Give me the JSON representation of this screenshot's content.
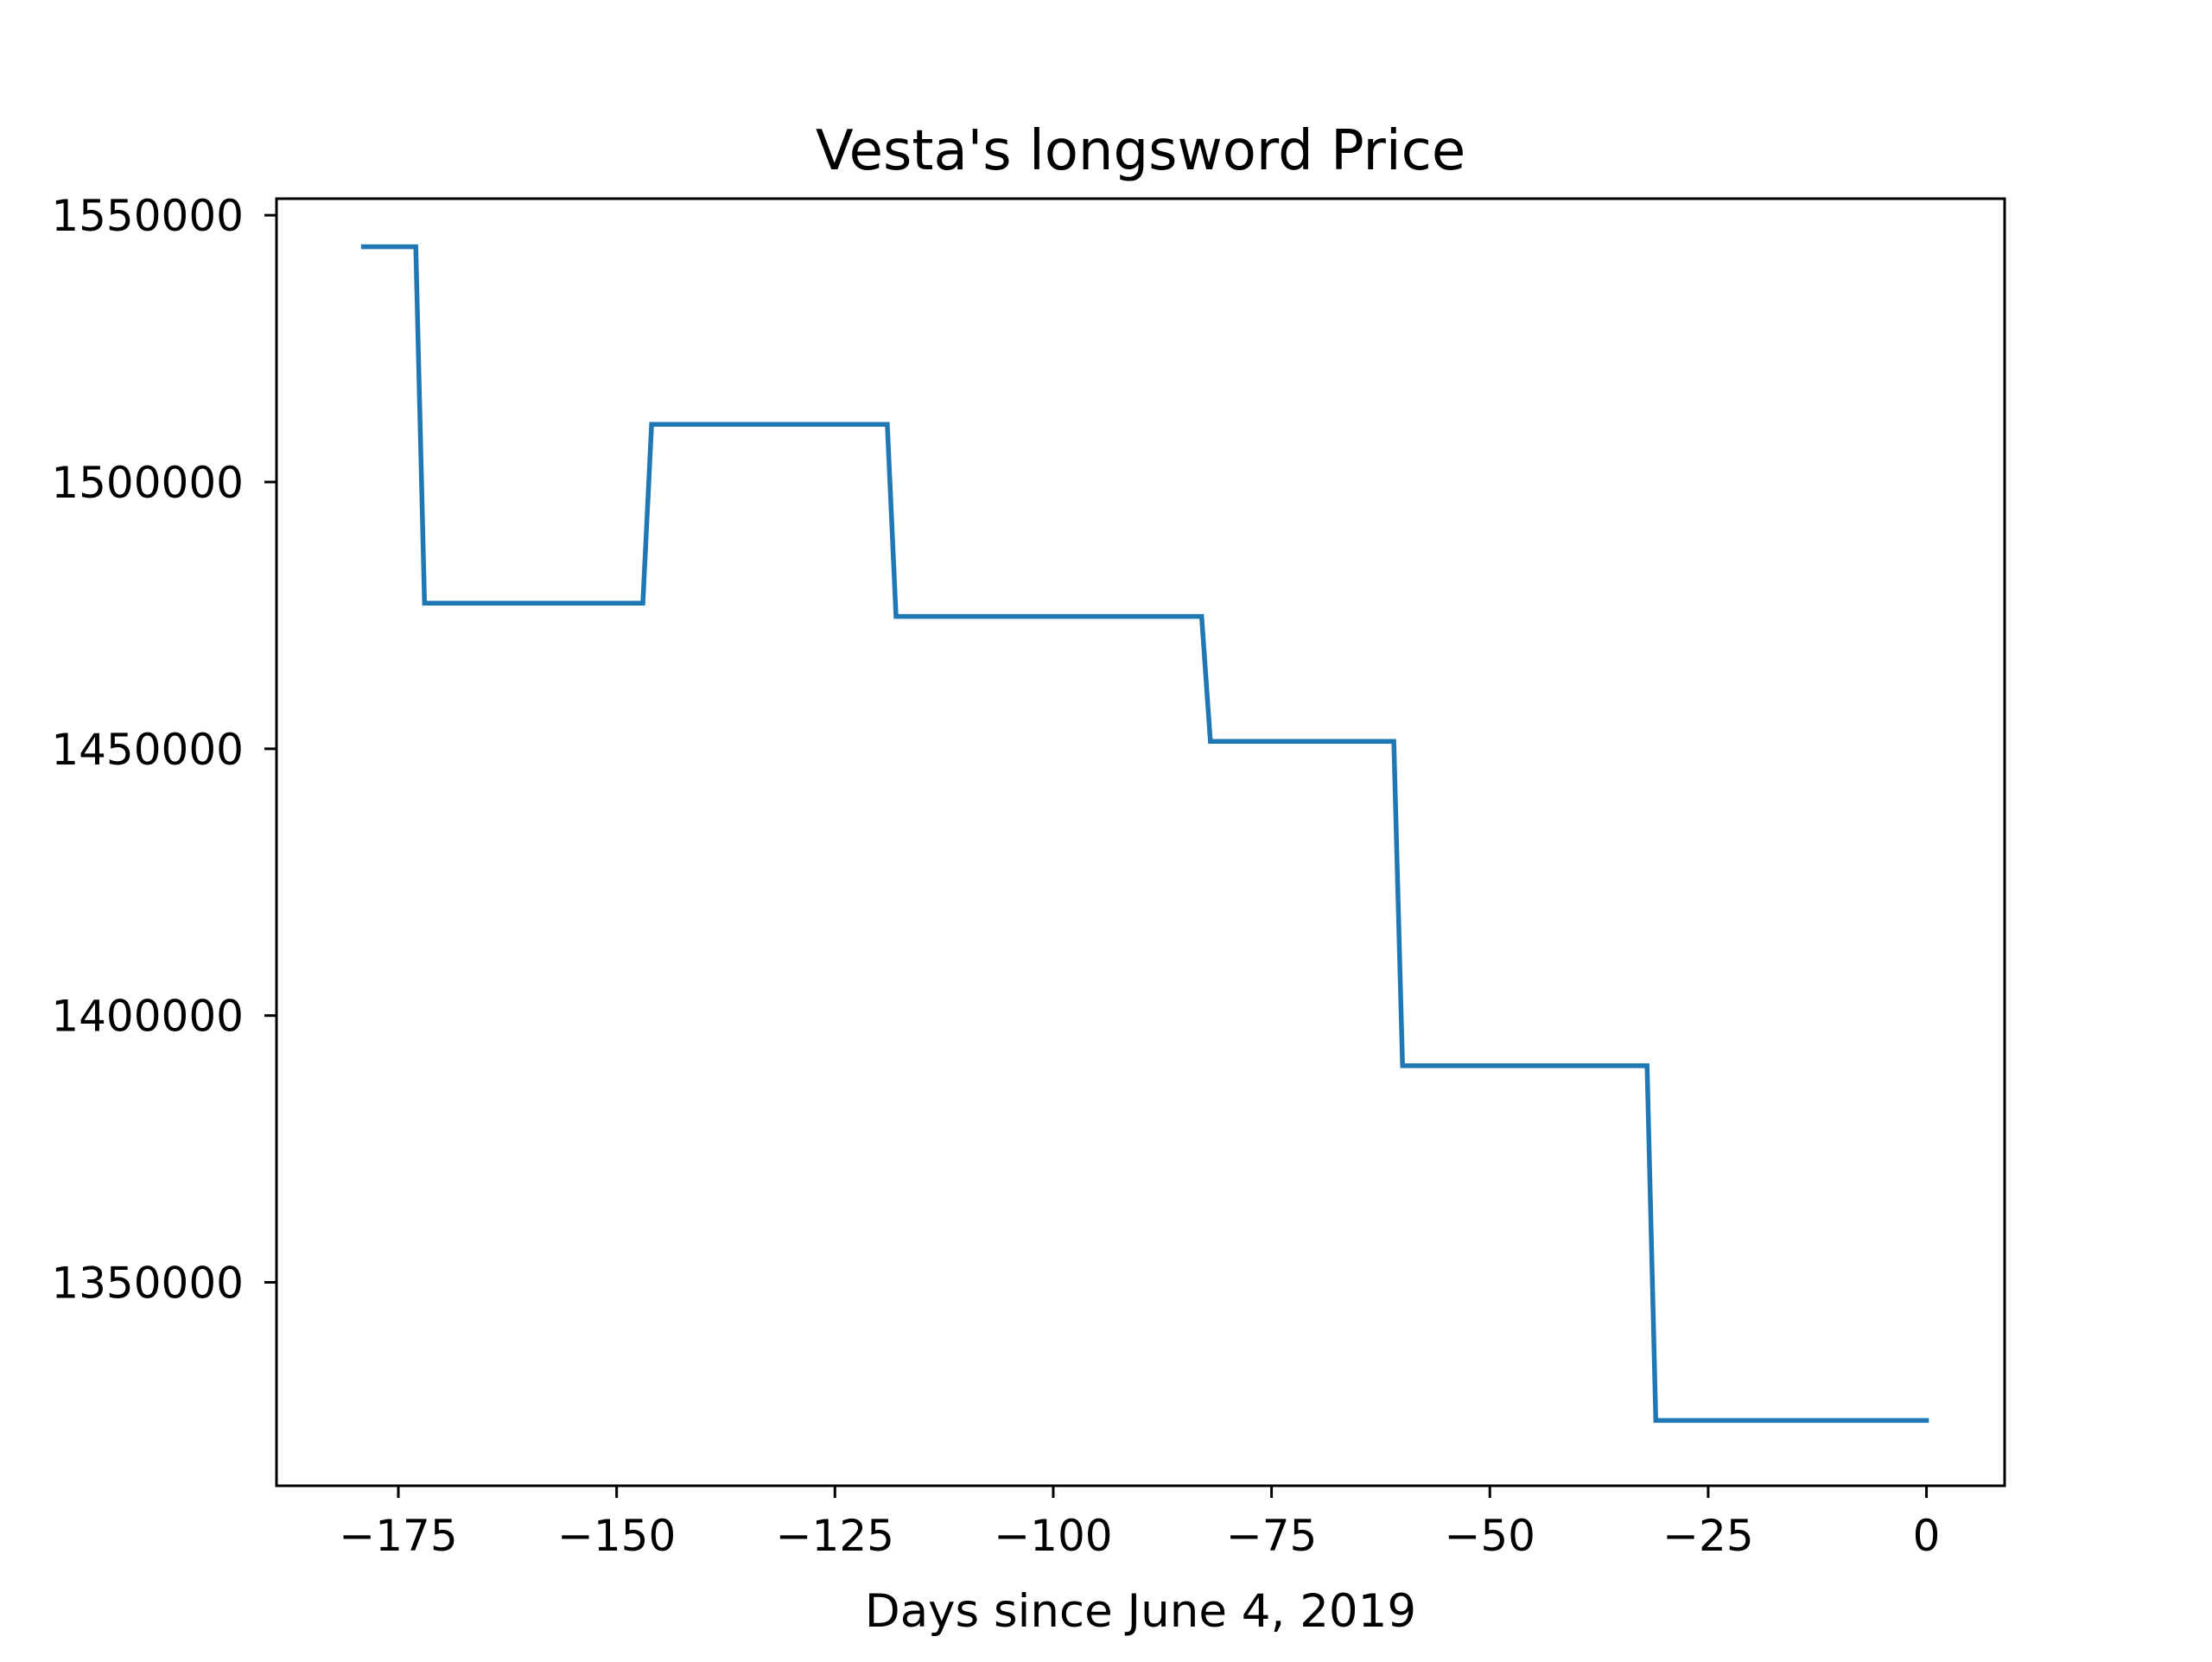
{
  "chart_data": {
    "type": "line",
    "title": "Vesta's longsword Price",
    "xlabel": "Days since June 4, 2019",
    "ylabel": "",
    "xlim": [
      -188.95,
      8.95
    ],
    "ylim": [
      1311867,
      1553103
    ],
    "x_ticks": [
      {
        "value": -175,
        "label": "−175"
      },
      {
        "value": -150,
        "label": "−150"
      },
      {
        "value": -125,
        "label": "−125"
      },
      {
        "value": -100,
        "label": "−100"
      },
      {
        "value": -75,
        "label": "−75"
      },
      {
        "value": -50,
        "label": "−50"
      },
      {
        "value": -25,
        "label": "−25"
      },
      {
        "value": 0,
        "label": "0"
      }
    ],
    "y_ticks": [
      {
        "value": 1350000,
        "label": "1350000"
      },
      {
        "value": 1400000,
        "label": "1400000"
      },
      {
        "value": 1450000,
        "label": "1450000"
      },
      {
        "value": 1500000,
        "label": "1500000"
      },
      {
        "value": 1550000,
        "label": "1550000"
      }
    ],
    "grid": false,
    "legend": "none",
    "series": [
      {
        "color": "#1f77b4",
        "x": [
          -179,
          -173,
          -172,
          -147,
          -146,
          -119,
          -118,
          -83,
          -82,
          -61,
          -60,
          -32,
          -31,
          0
        ],
        "y": [
          1544100,
          1544100,
          1477300,
          1477300,
          1510800,
          1510800,
          1474800,
          1474800,
          1451400,
          1451400,
          1390600,
          1390600,
          1324100,
          1324100
        ]
      }
    ]
  }
}
